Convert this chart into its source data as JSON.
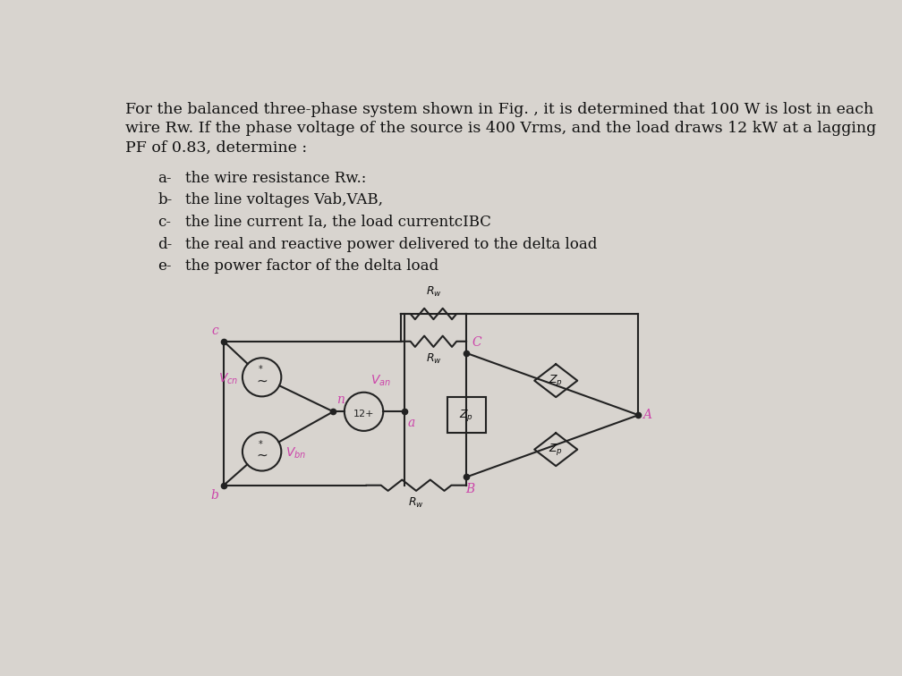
{
  "background_color": "#d8d4cf",
  "text_color": "#111111",
  "pink_color": "#cc44aa",
  "line_color": "#222222",
  "title_line1": "For the balanced three-phase system shown in Fig. , it is determined that 100 W is lost in each",
  "title_line2": "wire Rw. If the phase voltage of the source is 400 Vrms, and the load draws 12 kW at a lagging",
  "title_line3": "PF of 0.83, determine :",
  "items": [
    [
      "a-",
      "the wire resistance Rw.:"
    ],
    [
      "b-",
      "the line voltages Vab,VAB,"
    ],
    [
      "c-",
      "the line current Ia, the load currentcIBC"
    ],
    [
      "d-",
      "the real and reactive power delivered to the delta load"
    ],
    [
      "e-",
      "the power factor of the delta load"
    ]
  ],
  "font_size_title": 12.5,
  "font_size_items": 12.0
}
